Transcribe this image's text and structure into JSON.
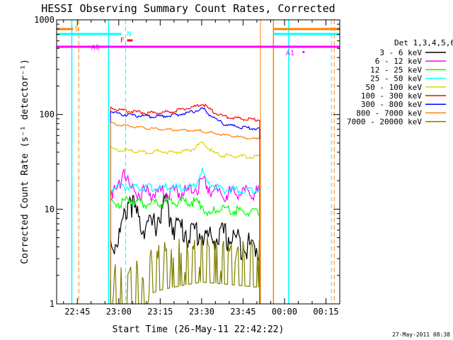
{
  "chart_data": {
    "type": "line",
    "title": "HESSI Observing Summary Count Rates, Corrected",
    "xlabel": "Start Time (26-May-11 22:42:22)",
    "ylabel": "Corrected Count Rate (s⁻¹ detector⁻¹)",
    "y_scale": "log",
    "ylim": [
      1,
      1000
    ],
    "xlim_minutes_after_22_00": [
      37.5,
      140
    ],
    "grid": false,
    "legend_position": "right",
    "legend_title": "Det 1,3,4,5,6",
    "footer": "27-May-2011 08:38",
    "x_ticks": [
      {
        "label": "22:45",
        "t": 45
      },
      {
        "label": "23:00",
        "t": 60
      },
      {
        "label": "23:15",
        "t": 75
      },
      {
        "label": "23:30",
        "t": 90
      },
      {
        "label": "23:45",
        "t": 105
      },
      {
        "label": "00:00",
        "t": 120
      },
      {
        "label": "00:15",
        "t": 135
      }
    ],
    "y_ticks": [
      {
        "label": "1",
        "v": 1
      },
      {
        "label": "10",
        "v": 10
      },
      {
        "label": "100",
        "v": 100
      },
      {
        "label": "1000",
        "v": 1000
      }
    ],
    "flag_labels": [
      {
        "text": "S",
        "color": "#ff7f00"
      },
      {
        "text": "N",
        "color": "#00ffff"
      },
      {
        "text": "F",
        "color": "#ff0000"
      },
      {
        "text": "A0",
        "color": "#ff00ff"
      },
      {
        "text": "A1",
        "color": "#ff00ff"
      }
    ],
    "data_interval": {
      "start": 57,
      "end": 111
    },
    "series": [
      {
        "name": "3 - 6 keV",
        "color": "#000000",
        "x": [
          57,
          59,
          61,
          62,
          64,
          66,
          68,
          70,
          72,
          74,
          76,
          77,
          78,
          80,
          82,
          84,
          86,
          88,
          90,
          92,
          94,
          96,
          98,
          100,
          102,
          104,
          106,
          108,
          110
        ],
        "y": [
          4.5,
          4.5,
          6,
          8,
          14,
          9,
          7,
          7,
          6.5,
          8,
          10,
          13,
          9,
          7,
          6.5,
          6,
          5.5,
          6,
          5.5,
          5,
          5,
          5,
          5.5,
          5,
          5,
          4.5,
          4.5,
          4,
          4
        ]
      },
      {
        "name": "6 - 12 keV",
        "color": "#ff00ff",
        "x": [
          57,
          59,
          60,
          61,
          62,
          63,
          64,
          66,
          70,
          75,
          80,
          85,
          88,
          90,
          92,
          94,
          96,
          100,
          105,
          110
        ],
        "y": [
          16,
          15,
          18,
          23,
          28,
          22,
          17,
          16,
          15,
          15,
          15,
          15.5,
          17,
          20,
          18,
          16,
          15,
          15,
          15,
          15
        ]
      },
      {
        "name": "12 - 25 keV",
        "color": "#00ff00",
        "x": [
          57,
          60,
          62,
          64,
          66,
          70,
          75,
          80,
          85,
          88,
          90,
          92,
          93,
          95,
          98,
          100,
          105,
          110
        ],
        "y": [
          12,
          11.5,
          12,
          13,
          12,
          11.5,
          11.5,
          12,
          12,
          12,
          11,
          9,
          8.5,
          10,
          10,
          10,
          9.5,
          9
        ]
      },
      {
        "name": "25 - 50 keV",
        "color": "#00ffff",
        "x": [
          57,
          60,
          62,
          64,
          66,
          70,
          75,
          80,
          85,
          88,
          89,
          90,
          91,
          92,
          94,
          96,
          98,
          100,
          105,
          110
        ],
        "y": [
          17,
          17,
          17.5,
          17,
          17,
          17,
          17,
          17,
          17,
          18,
          22,
          26,
          22,
          19,
          18,
          17,
          16,
          16,
          16,
          16
        ]
      },
      {
        "name": "50 - 100 keV",
        "color": "#d7d700",
        "x": [
          57,
          60,
          62,
          65,
          70,
          75,
          80,
          83,
          86,
          88,
          90,
          91,
          92,
          94,
          96,
          98,
          100,
          105,
          110
        ],
        "y": [
          44,
          42,
          42,
          41,
          40,
          41,
          40,
          41,
          42,
          46,
          50,
          49,
          45,
          40,
          38,
          37,
          37,
          36,
          36
        ]
      },
      {
        "name": "100 - 300 keV",
        "color": "#ff0000",
        "x": [
          57,
          60,
          62,
          65,
          70,
          75,
          80,
          83,
          86,
          88,
          90,
          91,
          92,
          94,
          96,
          98,
          100,
          105,
          110
        ],
        "y": [
          118,
          112,
          110,
          108,
          104,
          105,
          108,
          114,
          118,
          122,
          128,
          126,
          118,
          108,
          100,
          96,
          93,
          90,
          88
        ]
      },
      {
        "name": "300 - 800 keV",
        "color": "#0000ff",
        "x": [
          57,
          60,
          62,
          65,
          70,
          75,
          80,
          83,
          86,
          88,
          90,
          91,
          92,
          94,
          96,
          98,
          100,
          105,
          110
        ],
        "y": [
          108,
          102,
          100,
          98,
          95,
          96,
          98,
          102,
          106,
          110,
          115,
          112,
          104,
          94,
          86,
          80,
          77,
          73,
          71
        ]
      },
      {
        "name": "800 - 7000 keV",
        "color": "#ff7f00",
        "x": [
          57,
          60,
          65,
          70,
          75,
          80,
          85,
          90,
          95,
          100,
          105,
          110
        ],
        "y": [
          82,
          78,
          75,
          72,
          70,
          69,
          68,
          67,
          63,
          60,
          57,
          55
        ]
      },
      {
        "name": "7000 - 20000 keV",
        "color": "#7f7f00",
        "x": [
          57,
          60,
          65,
          70,
          72,
          75,
          80,
          85,
          90,
          95,
          100,
          105,
          110
        ],
        "y": [
          1.8,
          1.9,
          1.8,
          1.8,
          2.6,
          2.8,
          3,
          3.2,
          3.4,
          3.3,
          3.2,
          3.1,
          3
        ]
      }
    ]
  }
}
